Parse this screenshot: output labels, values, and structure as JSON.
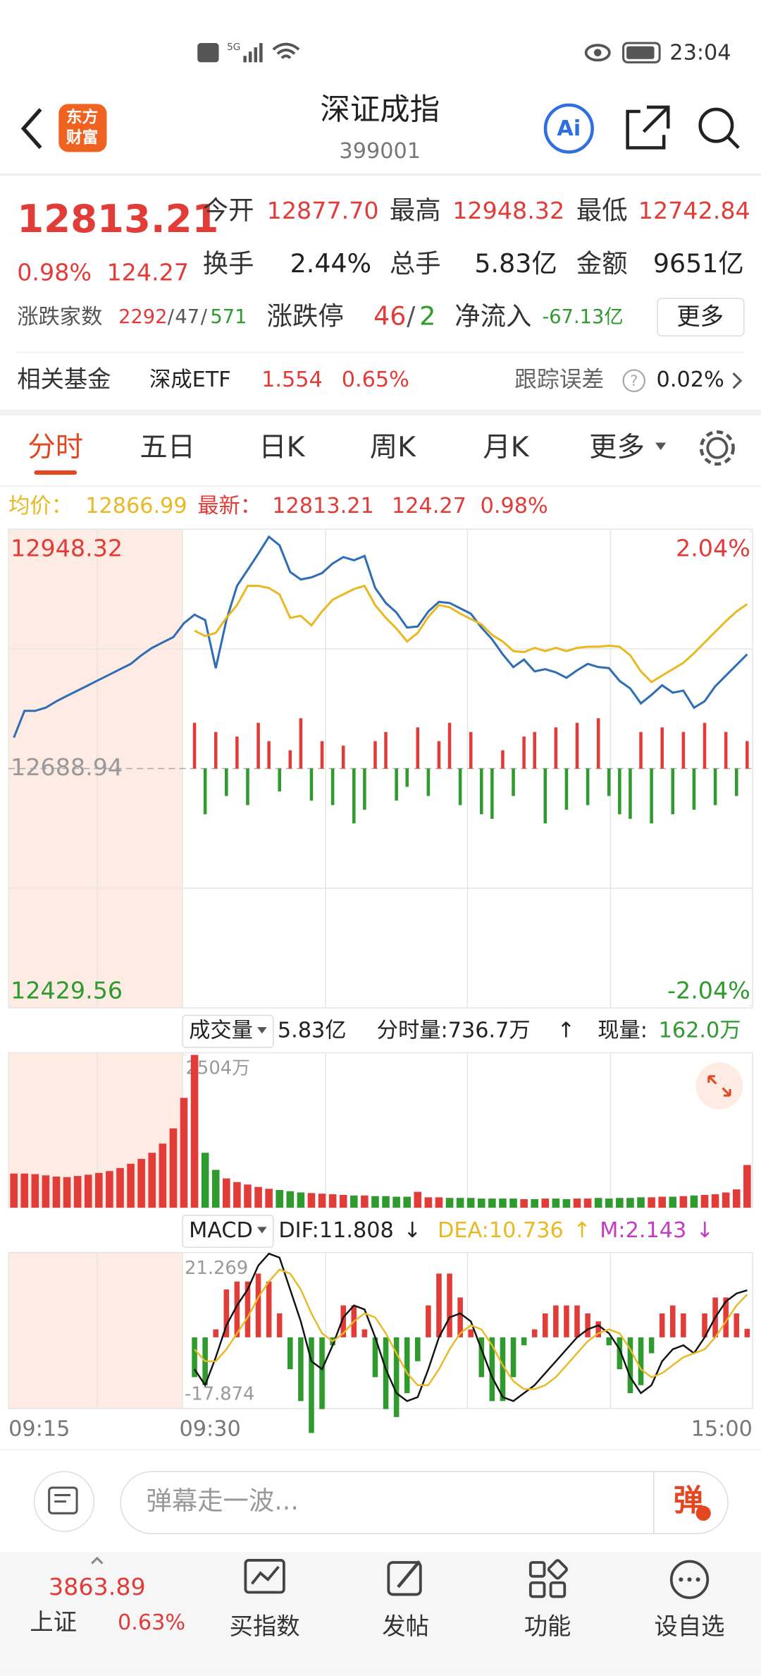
{
  "status_bar": {
    "network": "5G",
    "time": "23:04"
  },
  "header": {
    "logo": [
      "东方",
      "财富"
    ],
    "title": "深证成指",
    "code": "399001",
    "ai": "Ai"
  },
  "quote": {
    "price": "12813.21",
    "change_pct": "0.98%",
    "change": "124.27",
    "stats": [
      {
        "label": "今开",
        "value": "12877.70"
      },
      {
        "label": "最高",
        "value": "12948.32"
      },
      {
        "label": "最低",
        "value": "12742.84"
      },
      {
        "label": "换手",
        "value": "2.44%"
      },
      {
        "label": "总手",
        "value": "5.83亿"
      },
      {
        "label": "金额",
        "value": "9651亿"
      }
    ],
    "breadth": {
      "label": "涨跌家数",
      "up": "2292",
      "flat": "47",
      "down": "571",
      "separator": "/"
    },
    "limit": {
      "label": "涨跌停",
      "up": "46",
      "down": "2"
    },
    "net_inflow": {
      "label": "净流入",
      "value": "-67.13亿"
    },
    "more": "更多"
  },
  "fund": {
    "label": "相关基金",
    "name": "深成ETF",
    "price": "1.554",
    "change_pct": "0.65%",
    "tracking_label": "跟踪误差",
    "help": "?",
    "tracking": "0.02%"
  },
  "tabs": [
    "分时",
    "五日",
    "日K",
    "周K",
    "月K",
    "更多"
  ],
  "summary": {
    "avg_label": "均价：",
    "avg": "12866.99",
    "latest_label": "最新：",
    "latest": "12813.21",
    "change": "124.27",
    "change_pct": "0.98%"
  },
  "volume_header": {
    "indicator": "成交量",
    "total": "5.83亿",
    "minute_volume": "分时量:736.7万",
    "minute_arrow": "↑",
    "current_label": "现量:",
    "current": "162.0万"
  },
  "macd_header": {
    "indicator": "MACD",
    "dif": "DIF:11.808",
    "dif_arrow": "↓",
    "dea": "DEA:10.736",
    "dea_arrow": "↑",
    "m": "M:2.143",
    "m_arrow": "↓"
  },
  "time_axis": [
    "09:15",
    "09:30",
    "15:00"
  ],
  "chart_data": [
    {
      "type": "line",
      "ylim": [
        12429.56,
        12948.32
      ],
      "yticks": [
        12948.32,
        12688.94,
        12429.56
      ],
      "y2lim": [
        -2.04,
        2.04
      ],
      "y2ticks": [
        {
          "value": 2.04,
          "label": "2.04%"
        },
        {
          "value": -2.04,
          "label": "-2.04%"
        }
      ],
      "up_color": "#e23c39",
      "down_color": "#2f9b2f",
      "series": [
        {
          "color": "#2f6db5",
          "values": [
            12722.8,
            12752.0,
            12752.0,
            12755.5,
            12762.5,
            12768.4,
            12774.2,
            12780.0,
            12785.9,
            12791.7,
            12797.6,
            12803.4,
            12812.8,
            12820.9,
            12826.8,
            12832.6,
            12847.8,
            12857.2,
            12851.3,
            12798.7,
            12851.3,
            12888.7,
            12906.2,
            12923.8,
            12942.4,
            12933.1,
            12903.9,
            12895.7,
            12898.0,
            12902.7,
            12913.2,
            12920.2,
            12916.7,
            12921.4,
            12886.4,
            12870.0,
            12859.5,
            12843.1,
            12844.3,
            12860.7,
            12871.2,
            12870.0,
            12864.2,
            12858.3,
            12843.1,
            12830.3,
            12813.9,
            12799.9,
            12808.1,
            12795.2,
            12797.6,
            12794.1,
            12788.2,
            12796.4,
            12803.4,
            12799.9,
            12798.7,
            12784.7,
            12776.5,
            12760.2,
            12769.5,
            12780.0,
            12771.9,
            12774.2,
            12755.5,
            12762.5,
            12778.9,
            12790.6,
            12802.2,
            12813.9
          ]
        },
        {
          "color": "#e8b923",
          "values": [
            null,
            null,
            null,
            null,
            null,
            null,
            null,
            null,
            null,
            null,
            null,
            null,
            null,
            null,
            null,
            null,
            null,
            12839.7,
            12833.8,
            12837.3,
            12853.7,
            12867.7,
            12888.7,
            12888.7,
            12886.4,
            12879.4,
            12853.7,
            12856.0,
            12845.5,
            12860.7,
            12873.5,
            12879.4,
            12885.2,
            12888.7,
            12867.7,
            12853.7,
            12842.0,
            12827.9,
            12837.3,
            12854.8,
            12867.7,
            12865.3,
            12858.3,
            12852.5,
            12846.6,
            12835.0,
            12827.9,
            12817.4,
            12816.3,
            12820.9,
            12817.4,
            12820.9,
            12817.4,
            12820.9,
            12822.1,
            12822.1,
            12823.3,
            12822.1,
            12812.8,
            12795.2,
            12783.5,
            12790.6,
            12797.6,
            12804.6,
            12815.1,
            12826.8,
            12838.5,
            12850.1,
            12860.7,
            12868.8
          ]
        }
      ],
      "bars": [
        50,
        -50,
        40,
        -30,
        35,
        -40,
        50,
        30,
        -25,
        20,
        55,
        -35,
        30,
        -40,
        25,
        -60,
        -45,
        30,
        40,
        -35,
        -20,
        45,
        -30,
        30,
        50,
        -40,
        40,
        -50,
        -55,
        20,
        -30,
        35,
        40,
        -60,
        45,
        -45,
        50,
        -40,
        55,
        -30,
        -50,
        -55,
        40,
        -60,
        45,
        -50,
        40,
        -45,
        50,
        -40,
        40,
        -30,
        30
      ]
    },
    {
      "type": "bar",
      "ylim": [
        0,
        2504
      ],
      "yticks": [
        {
          "value": 2504,
          "label": "2504万"
        }
      ],
      "up_color": "#e23c39",
      "down_color": "#2f9b2f",
      "values": [
        560,
        560,
        550,
        530,
        510,
        500,
        520,
        540,
        570,
        600,
        650,
        720,
        800,
        900,
        1050,
        1300,
        1800,
        2504,
        900,
        620,
        480,
        420,
        380,
        340,
        310,
        290,
        270,
        250,
        240,
        230,
        220,
        210,
        200,
        200,
        190,
        190,
        180,
        180,
        260,
        170,
        170,
        160,
        160,
        160,
        150,
        150,
        150,
        150,
        140,
        140,
        150,
        150,
        140,
        150,
        150,
        160,
        150,
        160,
        160,
        170,
        170,
        180,
        180,
        190,
        200,
        210,
        220,
        250,
        300,
        700
      ]
    },
    {
      "type": "macd",
      "ylim": [
        -17.874,
        21.269
      ],
      "yticks": [
        21.269,
        -17.874
      ],
      "up_color": "#e23c39",
      "down_color": "#2f9b2f",
      "series": [
        {
          "color": "#111111",
          "values": [
            -8,
            -12,
            -5,
            3,
            8,
            12,
            18,
            21,
            20,
            12,
            4,
            -6,
            -8,
            -2,
            5,
            8,
            7,
            0,
            -8,
            -14,
            -16,
            -15,
            -8,
            0,
            5,
            6,
            4,
            -3,
            -10,
            -15,
            -16,
            -14,
            -12,
            -9,
            -6,
            -3,
            0,
            2,
            3,
            1,
            -3,
            -10,
            -14,
            -12,
            -6,
            -3,
            -2,
            -4,
            0,
            5,
            9,
            11,
            11.808
          ]
        },
        {
          "color": "#e8b923",
          "values": [
            -3,
            -6,
            -6,
            -3,
            1,
            5,
            10,
            14,
            17,
            16,
            12,
            6,
            1,
            -1,
            1,
            4,
            6,
            5,
            1,
            -4,
            -9,
            -12,
            -12,
            -8,
            -3,
            1,
            3,
            2,
            -2,
            -7,
            -11,
            -13,
            -13,
            -12,
            -10,
            -7,
            -4,
            -1,
            1,
            2,
            1,
            -3,
            -8,
            -10,
            -9,
            -7,
            -5,
            -4,
            -3,
            0,
            4,
            8,
            10.736
          ]
        }
      ],
      "histogram": [
        -10,
        -12,
        2,
        12,
        14,
        14,
        16,
        14,
        6,
        -8,
        -16,
        -24,
        -18,
        -2,
        8,
        8,
        2,
        -10,
        -18,
        -20,
        -14,
        -6,
        8,
        16,
        16,
        10,
        2,
        -10,
        -16,
        -16,
        -10,
        -2,
        2,
        6,
        8,
        8,
        8,
        6,
        4,
        -2,
        -8,
        -14,
        -12,
        -4,
        6,
        8,
        6,
        0,
        6,
        10,
        10,
        6,
        2.143
      ]
    }
  ],
  "comment": {
    "placeholder": "弹幕走一波...",
    "button": "弹"
  },
  "nav": {
    "index_value": "3863.89",
    "index_name": "上证",
    "index_change": "0.63%",
    "items": [
      "买指数",
      "发帖",
      "功能",
      "设自选"
    ]
  }
}
